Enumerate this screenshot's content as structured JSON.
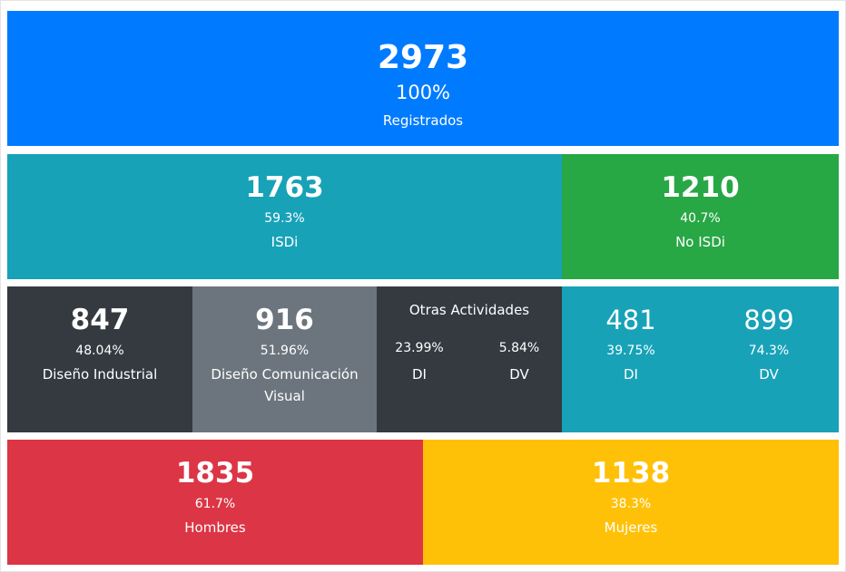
{
  "colors": {
    "blue": "#007bff",
    "teal": "#17a2b8",
    "green": "#28a745",
    "dark": "#343a40",
    "gray": "#6c757d",
    "red": "#dc3545",
    "yellow": "#ffc107"
  },
  "registrados": {
    "value": "2973",
    "percent": "100%",
    "label": "Registrados"
  },
  "isdi": {
    "value": "1763",
    "percent": "59.3%",
    "label": "ISDi"
  },
  "no_isdi": {
    "value": "1210",
    "percent": "40.7%",
    "label": "No ISDi"
  },
  "diseno_industrial": {
    "value": "847",
    "percent": "48.04%",
    "label": "Diseño Industrial"
  },
  "diseno_comunicacion": {
    "value": "916",
    "percent": "51.96%",
    "label": "Diseño Comunicación Visual"
  },
  "otras_actividades": {
    "title": "Otras Actividades",
    "di": {
      "percent": "23.99%",
      "label": "DI"
    },
    "dv": {
      "percent": "5.84%",
      "label": "DV"
    }
  },
  "no_isdi_breakdown": {
    "di": {
      "value": "481",
      "percent": "39.75%",
      "label": "DI"
    },
    "dv": {
      "value": "899",
      "percent": "74.3%",
      "label": "DV"
    }
  },
  "hombres": {
    "value": "1835",
    "percent": "61.7%",
    "label": "Hombres"
  },
  "mujeres": {
    "value": "1138",
    "percent": "38.3%",
    "label": "Mujeres"
  }
}
